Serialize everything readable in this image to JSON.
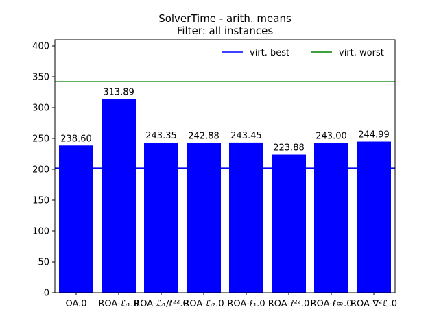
{
  "chart_data": {
    "type": "bar",
    "title": "SolverTime - arith. means",
    "subtitle": "Filter: all instances",
    "xlabel": "",
    "ylabel": "",
    "ylim": [
      0,
      410
    ],
    "yticks": [
      0,
      50,
      100,
      150,
      200,
      250,
      300,
      350,
      400
    ],
    "categories": [
      "OA.0",
      "ROA-ℒ₁.0",
      "ROA-ℒ₁/ℓ²².0",
      "ROA-ℒ₂.0",
      "ROA-ℓ₁.0",
      "ROA-ℓ²².0",
      "ROA-ℓ∞.0",
      "ROA-∇²ℒ.0"
    ],
    "values": [
      238.6,
      313.89,
      243.35,
      242.88,
      243.45,
      223.88,
      243.0,
      244.99
    ],
    "value_labels": [
      "238.60",
      "313.89",
      "243.35",
      "242.88",
      "243.45",
      "223.88",
      "243.00",
      "244.99"
    ],
    "bar_color": "#0000ff",
    "reference_lines": [
      {
        "name": "virt. best",
        "value": 202,
        "color": "#0000ff"
      },
      {
        "name": "virt. worst",
        "value": 342,
        "color": "#008000"
      }
    ],
    "grid": false,
    "legend_position": "top-right"
  }
}
